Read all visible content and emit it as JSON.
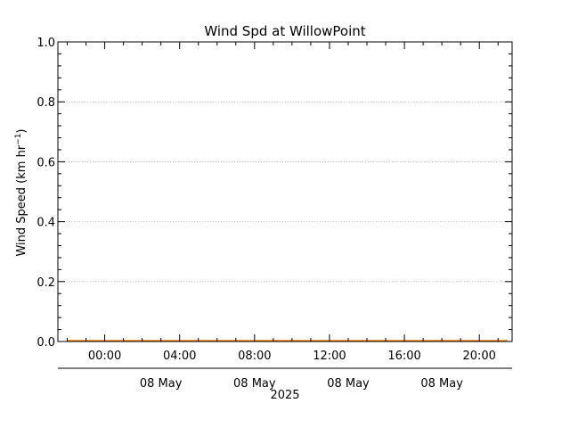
{
  "chart_data": {
    "type": "line",
    "title": "Wind Spd at WillowPoint",
    "ylabel": {
      "main": "Wind Speed (km hr",
      "superscript": "−1",
      "close": ")"
    },
    "xlabel": "2025",
    "ylim": [
      0.0,
      1.0
    ],
    "xlim": [
      "2025-05-07T21:30",
      "2025-05-08T21:45"
    ],
    "y_ticks": [
      "0.0",
      "0.2",
      "0.4",
      "0.6",
      "0.8",
      "1.0"
    ],
    "x_time_ticks": [
      {
        "t": "2025-05-08T00:00",
        "label": "00:00"
      },
      {
        "t": "2025-05-08T04:00",
        "label": "04:00"
      },
      {
        "t": "2025-05-08T08:00",
        "label": "08:00"
      },
      {
        "t": "2025-05-08T12:00",
        "label": "12:00"
      },
      {
        "t": "2025-05-08T16:00",
        "label": "16:00"
      },
      {
        "t": "2025-05-08T20:00",
        "label": "20:00"
      }
    ],
    "x_date_ticks": [
      {
        "t": "2025-05-08T03:00",
        "label": "08 May"
      },
      {
        "t": "2025-05-08T08:00",
        "label": "08 May"
      },
      {
        "t": "2025-05-08T13:00",
        "label": "08 May"
      },
      {
        "t": "2025-05-08T18:00",
        "label": "08 May"
      }
    ],
    "grid": true,
    "series": [
      {
        "color": "#ff8000",
        "x": [
          "2025-05-07T22:00",
          "2025-05-08T21:30"
        ],
        "y": [
          0.0,
          0.0
        ]
      }
    ]
  }
}
